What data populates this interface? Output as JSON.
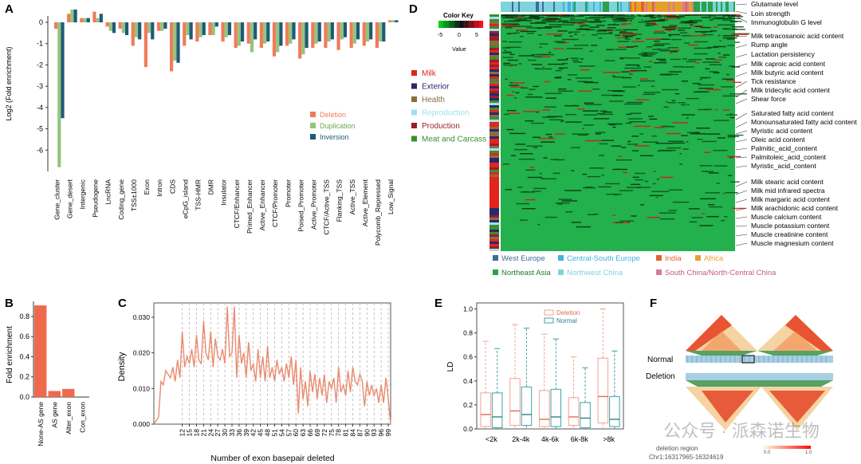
{
  "colors": {
    "deletion": "#f07b5b",
    "duplication": "#93c47d",
    "inversion": "#1f5a78",
    "bar_b": "#ef6a4c",
    "density": "#ea8a6f",
    "heat_green": "#22b14c",
    "heat_red": "#e01010",
    "ld_del": "#f4a28f",
    "ld_norm": "#3fa3a8"
  },
  "panelA": {
    "label": "A",
    "ylabel": "Log2 (Fold enrichment)",
    "legend": [
      "Deletion",
      "Duplication",
      "Inversion"
    ]
  },
  "panelB": {
    "label": "B",
    "ylabel": "Fold enrichment"
  },
  "panelC": {
    "label": "C",
    "ylabel": "Density",
    "xlabel": "Number of exon basepair deleted"
  },
  "panelD": {
    "label": "D",
    "colorkey_title": "Color Key",
    "colorkey_value": "Value",
    "categories": [
      {
        "name": "Milk",
        "color": "#e3241f"
      },
      {
        "name": "Exterior",
        "color": "#272a6b"
      },
      {
        "name": "Health",
        "color": "#8b6d3c"
      },
      {
        "name": "Reproduction",
        "color": "#9fe0ef"
      },
      {
        "name": "Production",
        "color": "#9a1f2a"
      },
      {
        "name": "Meat and Carcass",
        "color": "#3a8f2e"
      }
    ],
    "regions": [
      {
        "name": "West Europe",
        "color": "#3b6d98"
      },
      {
        "name": "Central-South Europe",
        "color": "#41b2e3"
      },
      {
        "name": "India",
        "color": "#e0632f"
      },
      {
        "name": "Africa",
        "color": "#e6a02a"
      },
      {
        "name": "Northeast Asia",
        "color": "#2aa24a"
      },
      {
        "name": "Northwest China",
        "color": "#7fd3db"
      },
      {
        "name": "South China/North-Central China",
        "color": "#d47ba3"
      }
    ],
    "traits": [
      "Glutamate level",
      "Loin strength",
      "Immunoglobulin G level",
      "Milk tetracosanoic acid content",
      "Rump angle",
      "Lactation persistency",
      "Milk caproic acid content",
      "Milk butyric acid content",
      "Tick resistance",
      "Milk tridecylic acid content",
      "Shear force",
      "Saturated fatty acid content",
      "Monounsaturated fatty acid content",
      "Myristic acid content",
      "Oleic acid content",
      "Palmitic_acid_content",
      "Palmitoleic_acid_content",
      "Myristic_acid_content",
      "Milk stearic acid content",
      "Milk mid infrared spectra",
      "Milk margaric acid content",
      "Milk arachidonic acid content",
      "Muscle calcium content",
      "Muscle potassium content",
      "Muscle creatinine content",
      "Muscle magnesium content"
    ]
  },
  "panelE": {
    "label": "E",
    "ylabel": "LD",
    "legend": [
      "Deletion",
      "Normal"
    ]
  },
  "panelF": {
    "label": "F",
    "normal_label": "Normal",
    "deletion_label": "Deletion",
    "position_text": "deletion region",
    "coord_text": "Chr1:16317965-16324619",
    "scale_min": "0.0",
    "scale_max": "1.0"
  },
  "watermark": "公众号 · 派森诺生物",
  "chart_data": [
    {
      "type": "bar",
      "panel": "A",
      "categories": [
        "Gene_cluster",
        "Gene_desert",
        "Intergenic",
        "Pseudogene",
        "LncRNA",
        "Coding_gene",
        "TSS±1000",
        "Exon",
        "Intron",
        "CDS",
        "eCpG_island",
        "TSS-HMR",
        "DMR",
        "Insulator",
        "CTCF/Enhancer",
        "Primed_Enhancer",
        "Active_Enhancer",
        "CTCF/Promoter",
        "Promoter",
        "Poised_Promoter",
        "Active_Promoter",
        "CTCF/Active_TSS",
        "Flanking_TSS",
        "Active_TSS",
        "Active_Element",
        "Polycomb_Repressed",
        "Low_Signal"
      ],
      "series": [
        {
          "name": "Deletion",
          "values": [
            -0.3,
            0.4,
            0.2,
            0.5,
            -0.2,
            -0.3,
            -1.1,
            -2.1,
            -0.4,
            -2.3,
            -1.1,
            -0.9,
            -0.6,
            -0.9,
            -1.2,
            -1.0,
            -1.2,
            -1.6,
            -1.1,
            -1.7,
            -1.2,
            -1.2,
            -1.3,
            -1.2,
            -1.1,
            -1.2,
            0.1
          ]
        },
        {
          "name": "Duplication",
          "values": [
            -6.8,
            0.6,
            0.2,
            0.2,
            -0.4,
            -0.5,
            -0.7,
            -0.5,
            -0.4,
            -1.8,
            -0.6,
            -0.7,
            -0.6,
            -0.7,
            -1.1,
            -1.4,
            -1.0,
            -1.4,
            -1.0,
            -1.5,
            -1.0,
            -0.9,
            -0.8,
            -1.0,
            -0.9,
            -0.9,
            0.1
          ]
        },
        {
          "name": "Inversion",
          "values": [
            -4.5,
            0.6,
            0.2,
            0.4,
            -0.5,
            -0.6,
            -0.8,
            -0.8,
            -0.3,
            -1.9,
            -0.8,
            -0.6,
            -0.2,
            -0.6,
            -0.9,
            -0.8,
            -0.9,
            -1.1,
            -0.8,
            -1.2,
            -0.9,
            -0.8,
            -0.7,
            -0.8,
            -0.8,
            -0.9,
            0.1
          ]
        }
      ],
      "ylim": [
        -7,
        0.3
      ],
      "yticks": [
        0,
        -1,
        -2,
        -3,
        -4,
        -5,
        -6
      ]
    },
    {
      "type": "bar",
      "panel": "B",
      "categories": [
        "None-AS gene",
        "AS gene",
        "Alter_exon",
        "Con_exon"
      ],
      "values": [
        0.91,
        0.06,
        0.08,
        0.0
      ],
      "ylim": [
        0,
        0.95
      ],
      "yticks": [
        0.0,
        0.2,
        0.4,
        0.6,
        0.8
      ]
    },
    {
      "type": "line",
      "panel": "C",
      "xlim": [
        0,
        100
      ],
      "ylim": [
        0,
        0.034
      ],
      "yticks": [
        0.0,
        0.01,
        0.02,
        0.03
      ],
      "xticks": [
        12,
        15,
        18,
        21,
        24,
        27,
        30,
        33,
        36,
        39,
        42,
        45,
        48,
        51,
        54,
        57,
        60,
        63,
        66,
        69,
        72,
        75,
        78,
        81,
        84,
        87,
        90,
        93,
        96,
        99
      ],
      "x": [
        0,
        2,
        3,
        4,
        5,
        6,
        7,
        8,
        9,
        10,
        11,
        12,
        13,
        14,
        15,
        16,
        17,
        18,
        19,
        20,
        21,
        22,
        23,
        24,
        25,
        26,
        27,
        28,
        29,
        30,
        31,
        32,
        33,
        34,
        35,
        36,
        37,
        38,
        39,
        40,
        41,
        42,
        43,
        44,
        45,
        46,
        47,
        48,
        49,
        50,
        51,
        52,
        53,
        54,
        55,
        56,
        57,
        58,
        59,
        60,
        61,
        62,
        63,
        64,
        65,
        66,
        67,
        68,
        69,
        70,
        71,
        72,
        73,
        74,
        75,
        76,
        77,
        78,
        79,
        80,
        81,
        82,
        83,
        84,
        85,
        86,
        87,
        88,
        89,
        90,
        91,
        92,
        93,
        94,
        95,
        96,
        97,
        98,
        99,
        100
      ],
      "y": [
        0.0,
        0.002,
        0.012,
        0.011,
        0.015,
        0.014,
        0.013,
        0.016,
        0.012,
        0.018,
        0.013,
        0.026,
        0.016,
        0.019,
        0.017,
        0.021,
        0.016,
        0.025,
        0.018,
        0.017,
        0.029,
        0.02,
        0.018,
        0.026,
        0.016,
        0.024,
        0.019,
        0.018,
        0.021,
        0.017,
        0.033,
        0.019,
        0.02,
        0.033,
        0.013,
        0.025,
        0.017,
        0.02,
        0.013,
        0.023,
        0.015,
        0.017,
        0.012,
        0.021,
        0.013,
        0.019,
        0.012,
        0.022,
        0.013,
        0.016,
        0.012,
        0.018,
        0.014,
        0.016,
        0.012,
        0.017,
        0.013,
        0.019,
        0.011,
        0.018,
        0.003,
        0.016,
        0.007,
        0.012,
        0.005,
        0.015,
        0.009,
        0.014,
        0.007,
        0.013,
        0.008,
        0.014,
        0.006,
        0.012,
        0.01,
        0.013,
        0.006,
        0.016,
        0.009,
        0.011,
        0.008,
        0.015,
        0.009,
        0.016,
        0.012,
        0.011,
        0.014,
        0.012,
        0.005,
        0.012,
        0.008,
        0.011,
        0.008,
        0.01,
        0.006,
        0.011,
        0.006,
        0.013,
        0.007,
        0.0
      ]
    },
    {
      "type": "box",
      "panel": "E",
      "categories": [
        "<2k",
        "2k-4k",
        "4k-6k",
        "6k-8k",
        ">8k"
      ],
      "ylim": [
        0,
        1.05
      ],
      "yticks": [
        0.0,
        0.2,
        0.4,
        0.6,
        0.8,
        1.0
      ],
      "series": [
        {
          "name": "Deletion",
          "boxes": [
            {
              "min": 0.0,
              "q1": 0.02,
              "median": 0.12,
              "q3": 0.3,
              "max": 0.73
            },
            {
              "min": 0.0,
              "q1": 0.03,
              "median": 0.15,
              "q3": 0.42,
              "max": 0.87
            },
            {
              "min": 0.0,
              "q1": 0.02,
              "median": 0.08,
              "q3": 0.32,
              "max": 0.79
            },
            {
              "min": 0.0,
              "q1": 0.03,
              "median": 0.1,
              "q3": 0.26,
              "max": 0.6
            },
            {
              "min": 0.0,
              "q1": 0.05,
              "median": 0.27,
              "q3": 0.59,
              "max": 1.0
            }
          ]
        },
        {
          "name": "Normal",
          "boxes": [
            {
              "min": 0.0,
              "q1": 0.01,
              "median": 0.1,
              "q3": 0.3,
              "max": 0.67
            },
            {
              "min": 0.0,
              "q1": 0.03,
              "median": 0.12,
              "q3": 0.35,
              "max": 0.84
            },
            {
              "min": 0.0,
              "q1": 0.02,
              "median": 0.1,
              "q3": 0.33,
              "max": 0.75
            },
            {
              "min": 0.0,
              "q1": 0.01,
              "median": 0.09,
              "q3": 0.22,
              "max": 0.51
            },
            {
              "min": 0.0,
              "q1": 0.02,
              "median": 0.08,
              "q3": 0.27,
              "max": 0.65
            }
          ]
        }
      ]
    }
  ]
}
